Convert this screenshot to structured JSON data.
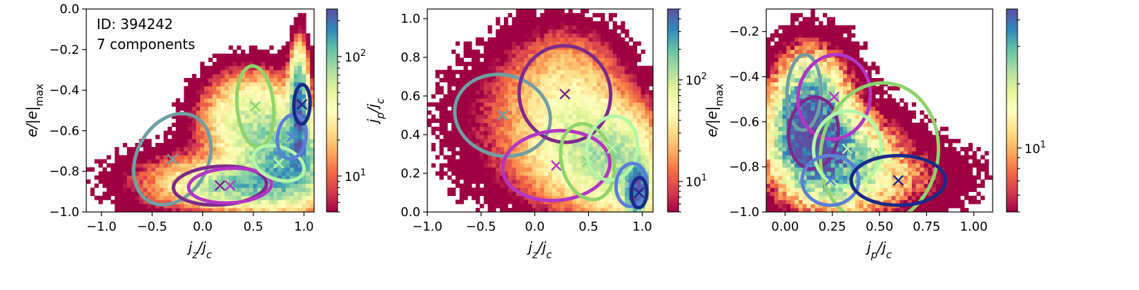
{
  "figure": {
    "id_text": "ID: 394242",
    "components_text": "7 components"
  },
  "colorbar": {
    "colormap": [
      "#9e0142",
      "#d53e4f",
      "#f46d43",
      "#fdae61",
      "#fee08b",
      "#ffffbf",
      "#e6f598",
      "#abdda4",
      "#66c2a5",
      "#3288bd",
      "#5e4fa2"
    ],
    "log_min": 5,
    "log_max": 500
  },
  "component_colors": [
    "#6f9fa3",
    "#7d2a8c",
    "#b236c4",
    "#8ed46c",
    "#b3f7a8",
    "#5b7fd6",
    "#1a2a88"
  ],
  "chart_data": [
    {
      "type": "heatmap",
      "panel": "left",
      "xlabel": "j_z/j_c",
      "ylabel": "e/|e|_max",
      "xlim": [
        -1.15,
        1.1
      ],
      "ylim": [
        -1.0,
        0.0
      ],
      "xticks": [
        "−1.0",
        "−0.5",
        "0.0",
        "0.5",
        "1.0"
      ],
      "xtick_values": [
        -1.0,
        -0.5,
        0.0,
        0.5,
        1.0
      ],
      "yticks": [
        "0.0",
        "−0.2",
        "−0.4",
        "−0.6",
        "−0.8",
        "−1.0"
      ],
      "ytick_values": [
        0.0,
        -0.2,
        -0.4,
        -0.6,
        -0.8,
        -1.0
      ],
      "colorbar_ticks": [
        "10",
        "10"
      ],
      "colorbar_exponents": [
        "1",
        "2"
      ],
      "colorbar_tick_values": [
        10,
        100
      ],
      "colorbar_max": 250,
      "density_blobs": [
        {
          "cx": 0.5,
          "cy": -0.55,
          "sx": 0.28,
          "sy": 0.13,
          "amp": 60
        },
        {
          "cx": 0.85,
          "cy": -0.75,
          "sx": 0.25,
          "sy": 0.12,
          "amp": 120
        },
        {
          "cx": 0.4,
          "cy": -0.87,
          "sx": 0.35,
          "sy": 0.06,
          "amp": 90
        },
        {
          "cx": 0.95,
          "cy": -0.5,
          "sx": 0.05,
          "sy": 0.15,
          "amp": 220
        },
        {
          "cx": -0.1,
          "cy": -0.85,
          "sx": 0.45,
          "sy": 0.1,
          "amp": 15
        }
      ],
      "components": [
        {
          "mean": [
            -0.3,
            -0.74
          ],
          "width": 0.95,
          "height": 0.35,
          "angle": 62
        },
        {
          "mean": [
            0.17,
            -0.87
          ],
          "width": 0.92,
          "height": 0.19,
          "angle": 3
        },
        {
          "mean": [
            0.27,
            -0.87
          ],
          "width": 0.82,
          "height": 0.17,
          "angle": 3
        },
        {
          "mean": [
            0.52,
            -0.48
          ],
          "width": 0.36,
          "height": 0.4,
          "angle": 5
        },
        {
          "mean": [
            0.75,
            -0.76
          ],
          "width": 0.32,
          "height": 0.26,
          "angle": 70
        },
        {
          "mean": [
            0.88,
            -0.63
          ],
          "width": 0.44,
          "height": 0.14,
          "angle": 82
        },
        {
          "mean": [
            0.98,
            -0.47
          ],
          "width": 0.39,
          "height": 0.08,
          "angle": 88
        }
      ]
    },
    {
      "type": "heatmap",
      "panel": "middle",
      "xlabel": "j_z/j_c",
      "ylabel": "j_p/j_c",
      "xlim": [
        -1.0,
        1.1
      ],
      "ylim": [
        0.0,
        1.05
      ],
      "xticks": [
        "−1.0",
        "−0.5",
        "0.0",
        "0.5",
        "1.0"
      ],
      "xtick_values": [
        -1.0,
        -0.5,
        0.0,
        0.5,
        1.0
      ],
      "yticks": [
        "0.0",
        "0.2",
        "0.4",
        "0.6",
        "0.8",
        "1.0"
      ],
      "ytick_values": [
        0.0,
        0.2,
        0.4,
        0.6,
        0.8,
        1.0
      ],
      "colorbar_ticks": [
        "10",
        "10"
      ],
      "colorbar_exponents": [
        "1",
        "2"
      ],
      "colorbar_tick_values": [
        10,
        100
      ],
      "colorbar_max": 500,
      "density_blobs": [
        {
          "cx": 0.3,
          "cy": 0.55,
          "sx": 0.3,
          "sy": 0.2,
          "amp": 40
        },
        {
          "cx": 0.5,
          "cy": 0.3,
          "sx": 0.3,
          "sy": 0.15,
          "amp": 70
        },
        {
          "cx": 0.95,
          "cy": 0.12,
          "sx": 0.06,
          "sy": 0.08,
          "amp": 450
        },
        {
          "cx": 0.8,
          "cy": 0.25,
          "sx": 0.2,
          "sy": 0.15,
          "amp": 80
        },
        {
          "cx": -0.1,
          "cy": 0.45,
          "sx": 0.45,
          "sy": 0.25,
          "amp": 8
        }
      ],
      "components": [
        {
          "mean": [
            -0.3,
            0.5
          ],
          "width": 0.75,
          "height": 0.5,
          "angle": 75
        },
        {
          "mean": [
            0.28,
            0.61
          ],
          "width": 0.85,
          "height": 0.5,
          "angle": 10
        },
        {
          "mean": [
            0.2,
            0.24
          ],
          "width": 1.0,
          "height": 0.36,
          "angle": 5
        },
        {
          "mean": [
            0.49,
            0.26
          ],
          "width": 0.48,
          "height": 0.4,
          "angle": 15
        },
        {
          "mean": [
            0.72,
            0.33
          ],
          "width": 0.6,
          "height": 0.26,
          "angle": 80
        },
        {
          "mean": [
            0.9,
            0.14
          ],
          "width": 0.4,
          "height": 0.16,
          "angle": 85
        },
        {
          "mean": [
            0.97,
            0.1
          ],
          "width": 0.28,
          "height": 0.08,
          "angle": 88
        }
      ]
    },
    {
      "type": "heatmap",
      "panel": "right",
      "xlabel": "j_p/j_c",
      "ylabel": "e/|e|_max",
      "xlim": [
        -0.1,
        1.1
      ],
      "ylim": [
        -1.0,
        -0.1
      ],
      "xticks": [
        "0.00",
        "0.25",
        "0.50",
        "0.75",
        "1.00"
      ],
      "xtick_values": [
        0.0,
        0.25,
        0.5,
        0.75,
        1.0
      ],
      "yticks": [
        "−0.2",
        "−0.4",
        "−0.6",
        "−0.8",
        "−1.0"
      ],
      "ytick_values": [
        -0.2,
        -0.4,
        -0.6,
        -0.8,
        -1.0
      ],
      "colorbar_ticks": [
        "10"
      ],
      "colorbar_exponents": [
        "1"
      ],
      "colorbar_tick_values": [
        10
      ],
      "colorbar_max": 45,
      "density_blobs": [
        {
          "cx": 0.12,
          "cy": -0.6,
          "sx": 0.12,
          "sy": 0.15,
          "amp": 40
        },
        {
          "cx": 0.25,
          "cy": -0.75,
          "sx": 0.2,
          "sy": 0.15,
          "amp": 25
        },
        {
          "cx": 0.5,
          "cy": -0.85,
          "sx": 0.3,
          "sy": 0.12,
          "amp": 8
        },
        {
          "cx": 0.15,
          "cy": -0.35,
          "sx": 0.15,
          "sy": 0.12,
          "amp": 6
        }
      ],
      "components": [
        {
          "mean": [
            0.1,
            -0.47
          ],
          "width": 0.4,
          "height": 0.15,
          "angle": 88
        },
        {
          "mean": [
            0.15,
            -0.65
          ],
          "width": 0.38,
          "height": 0.22,
          "angle": 85
        },
        {
          "mean": [
            0.26,
            -0.49
          ],
          "width": 0.45,
          "height": 0.32,
          "angle": 80
        },
        {
          "mean": [
            0.5,
            -0.74
          ],
          "width": 0.75,
          "height": 0.52,
          "angle": 80
        },
        {
          "mean": [
            0.33,
            -0.72
          ],
          "width": 0.4,
          "height": 0.3,
          "angle": 85
        },
        {
          "mean": [
            0.24,
            -0.86
          ],
          "width": 0.3,
          "height": 0.22,
          "angle": 0
        },
        {
          "mean": [
            0.6,
            -0.86
          ],
          "width": 0.5,
          "height": 0.22,
          "angle": 0
        }
      ]
    }
  ]
}
